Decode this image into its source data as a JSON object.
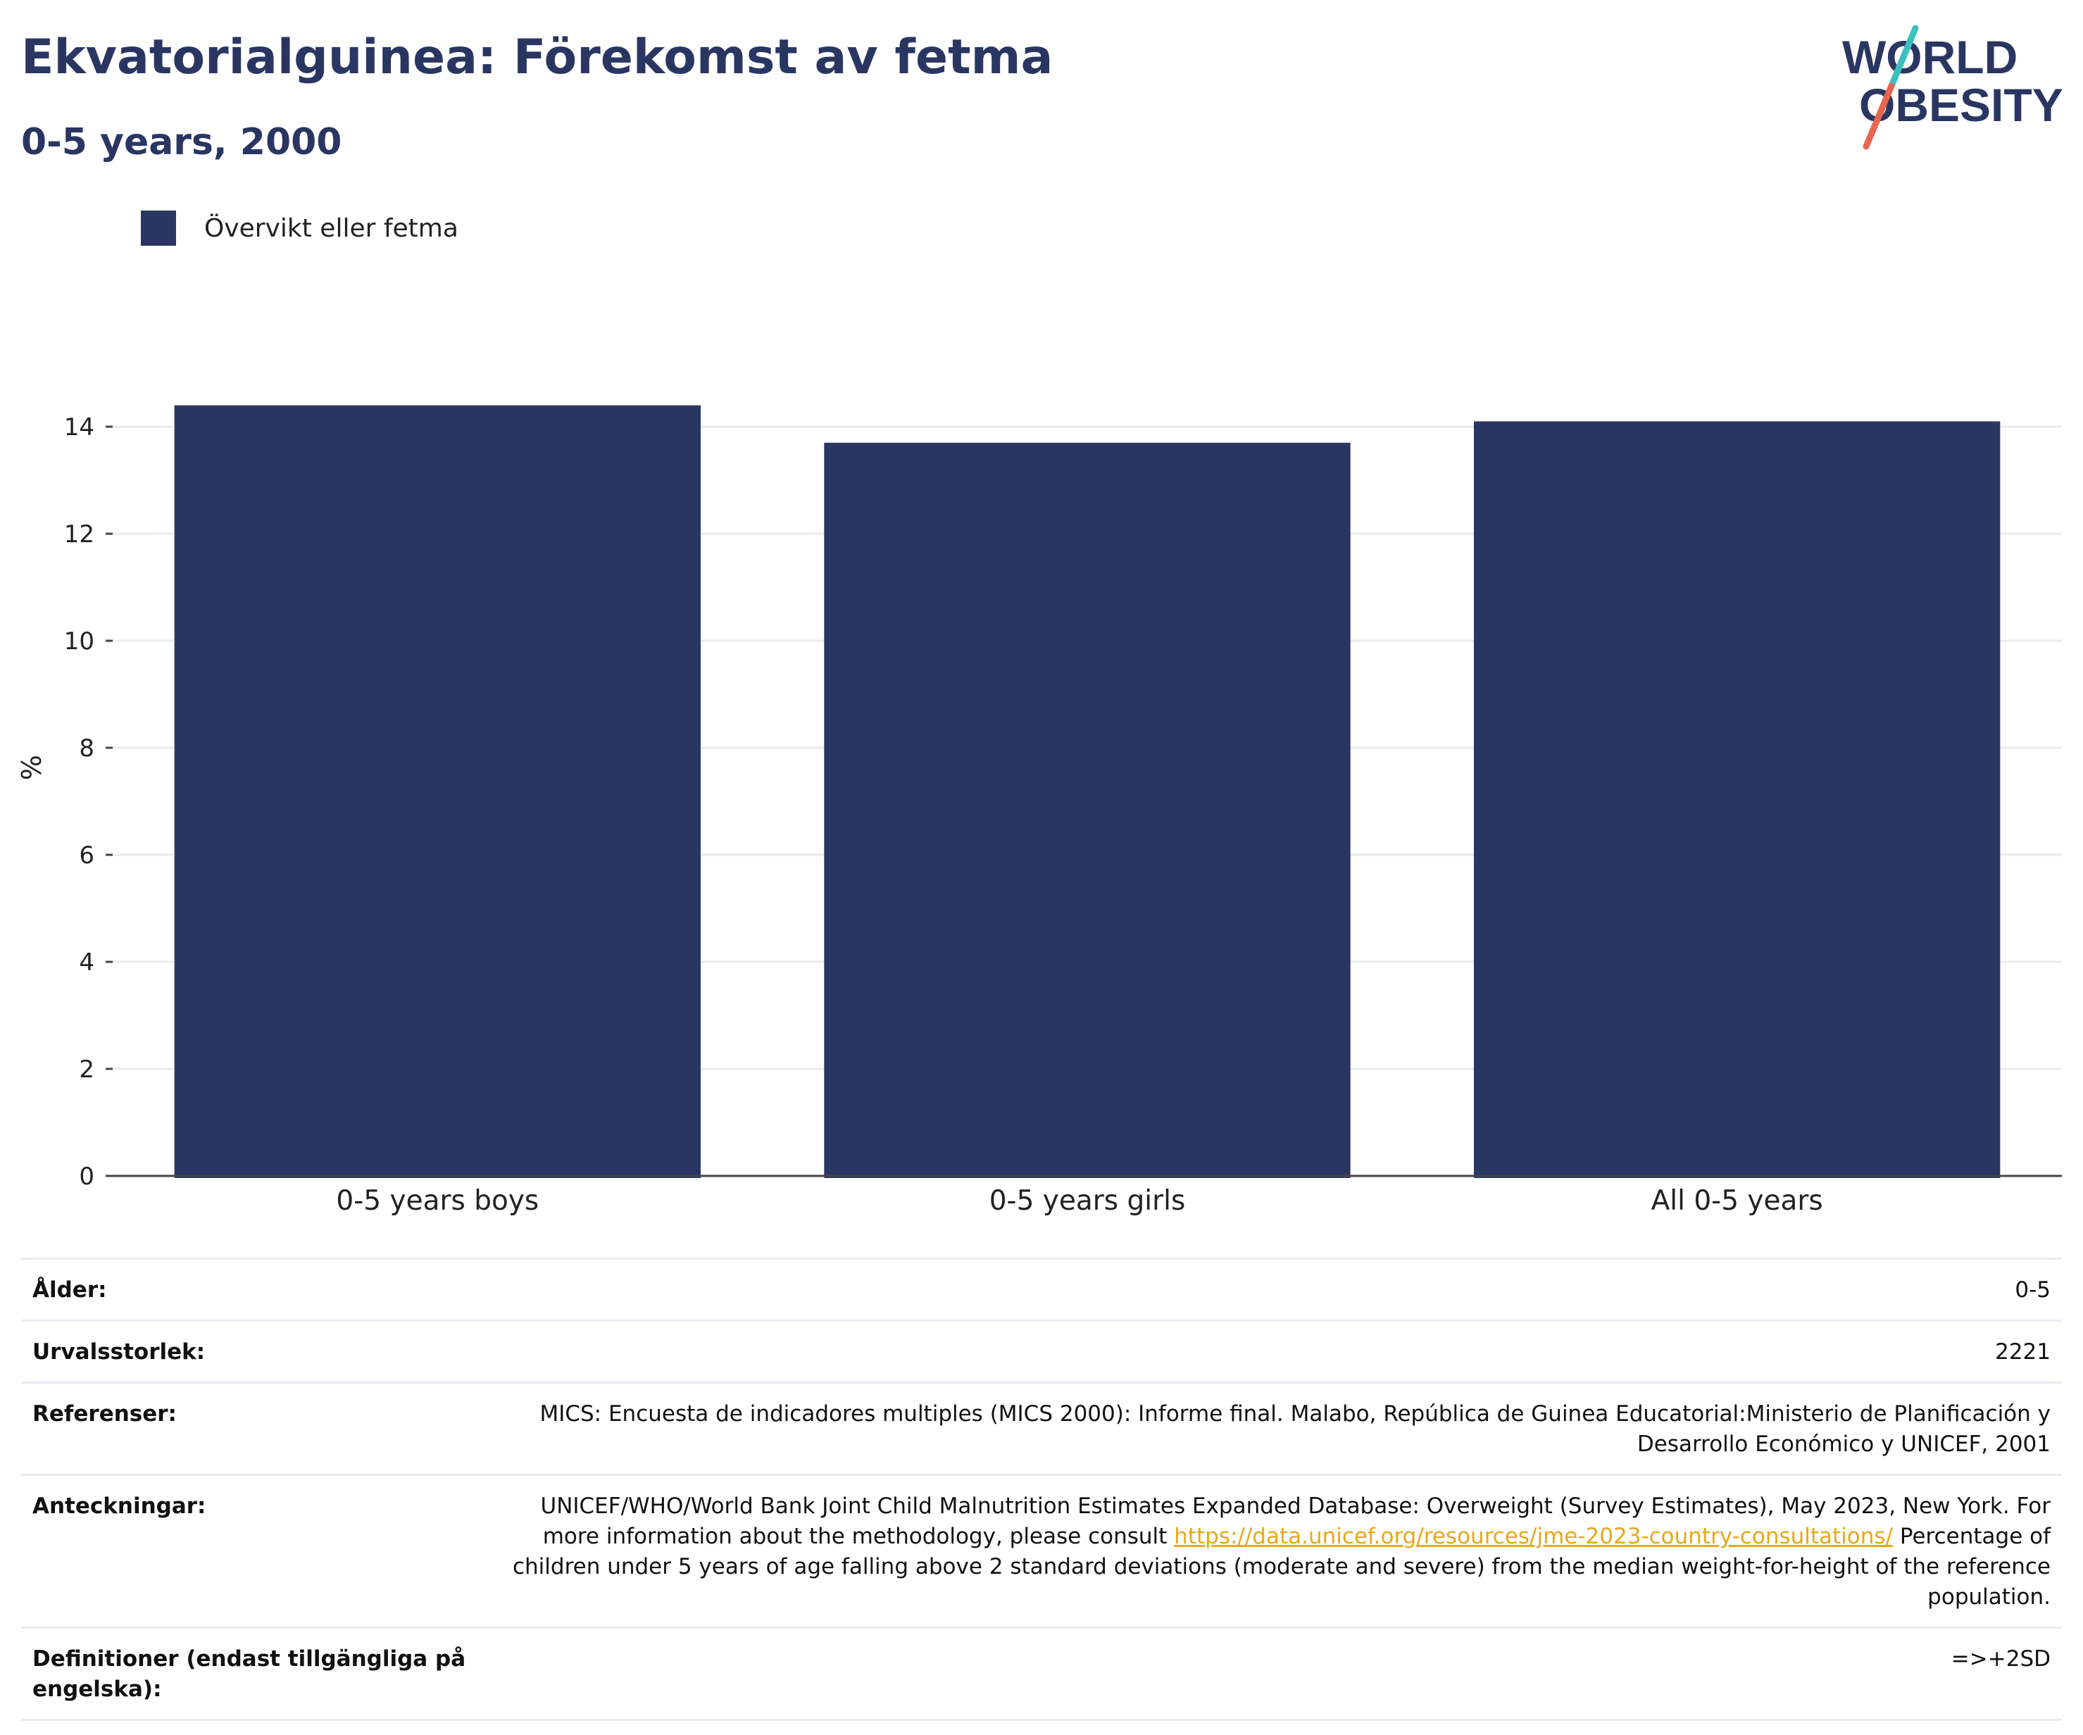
{
  "header": {
    "title": "Ekvatorialguinea: Förekomst av fetma",
    "subtitle": "0-5 years, 2000"
  },
  "logo": {
    "line1": "WORLD",
    "line2": "OBESITY",
    "colors": {
      "text": "#2a3662",
      "slash_top": "#3bbfbf",
      "slash_bottom": "#e8654f"
    }
  },
  "legend": {
    "label": "Övervikt eller fetma",
    "color": "#2a3662"
  },
  "chart_data": {
    "type": "bar",
    "categories": [
      "0-5 years boys",
      "0-5 years girls",
      "All 0-5 years"
    ],
    "series": [
      {
        "name": "Övervikt eller fetma",
        "values": [
          14.4,
          13.7,
          14.1
        ],
        "color": "#2a3662"
      }
    ],
    "ylabel": "%",
    "ylim": [
      0,
      15
    ],
    "yticks": [
      0,
      2,
      4,
      6,
      8,
      10,
      12,
      14
    ],
    "grid": true,
    "legend_position": "top-left"
  },
  "details": {
    "rows": [
      {
        "label": "Ålder:",
        "value": "0-5"
      },
      {
        "label": "Urvalsstorlek:",
        "value": "2221"
      },
      {
        "label": "Referenser:",
        "value": "MICS: Encuesta de indicadores multiples (MICS 2000): Informe final. Malabo, República de Guinea Educatorial:Ministerio de Planificación y Desarrollo Económico y UNICEF, 2001"
      },
      {
        "label": "Anteckningar:",
        "value_before": "UNICEF/WHO/World Bank Joint Child Malnutrition Estimates Expanded Database: Overweight (Survey Estimates), May 2023, New York. For more information about the methodology, please consult ",
        "link": "https://data.unicef.org/resources/jme-2023-country-consultations/",
        "value_after": " Percentage of children under 5 years of age falling above 2 standard deviations (moderate and severe) from the median weight-for-height of the reference population."
      },
      {
        "label": "Definitioner (endast tillgängliga på engelska):",
        "value": "=>+2SD"
      }
    ]
  }
}
